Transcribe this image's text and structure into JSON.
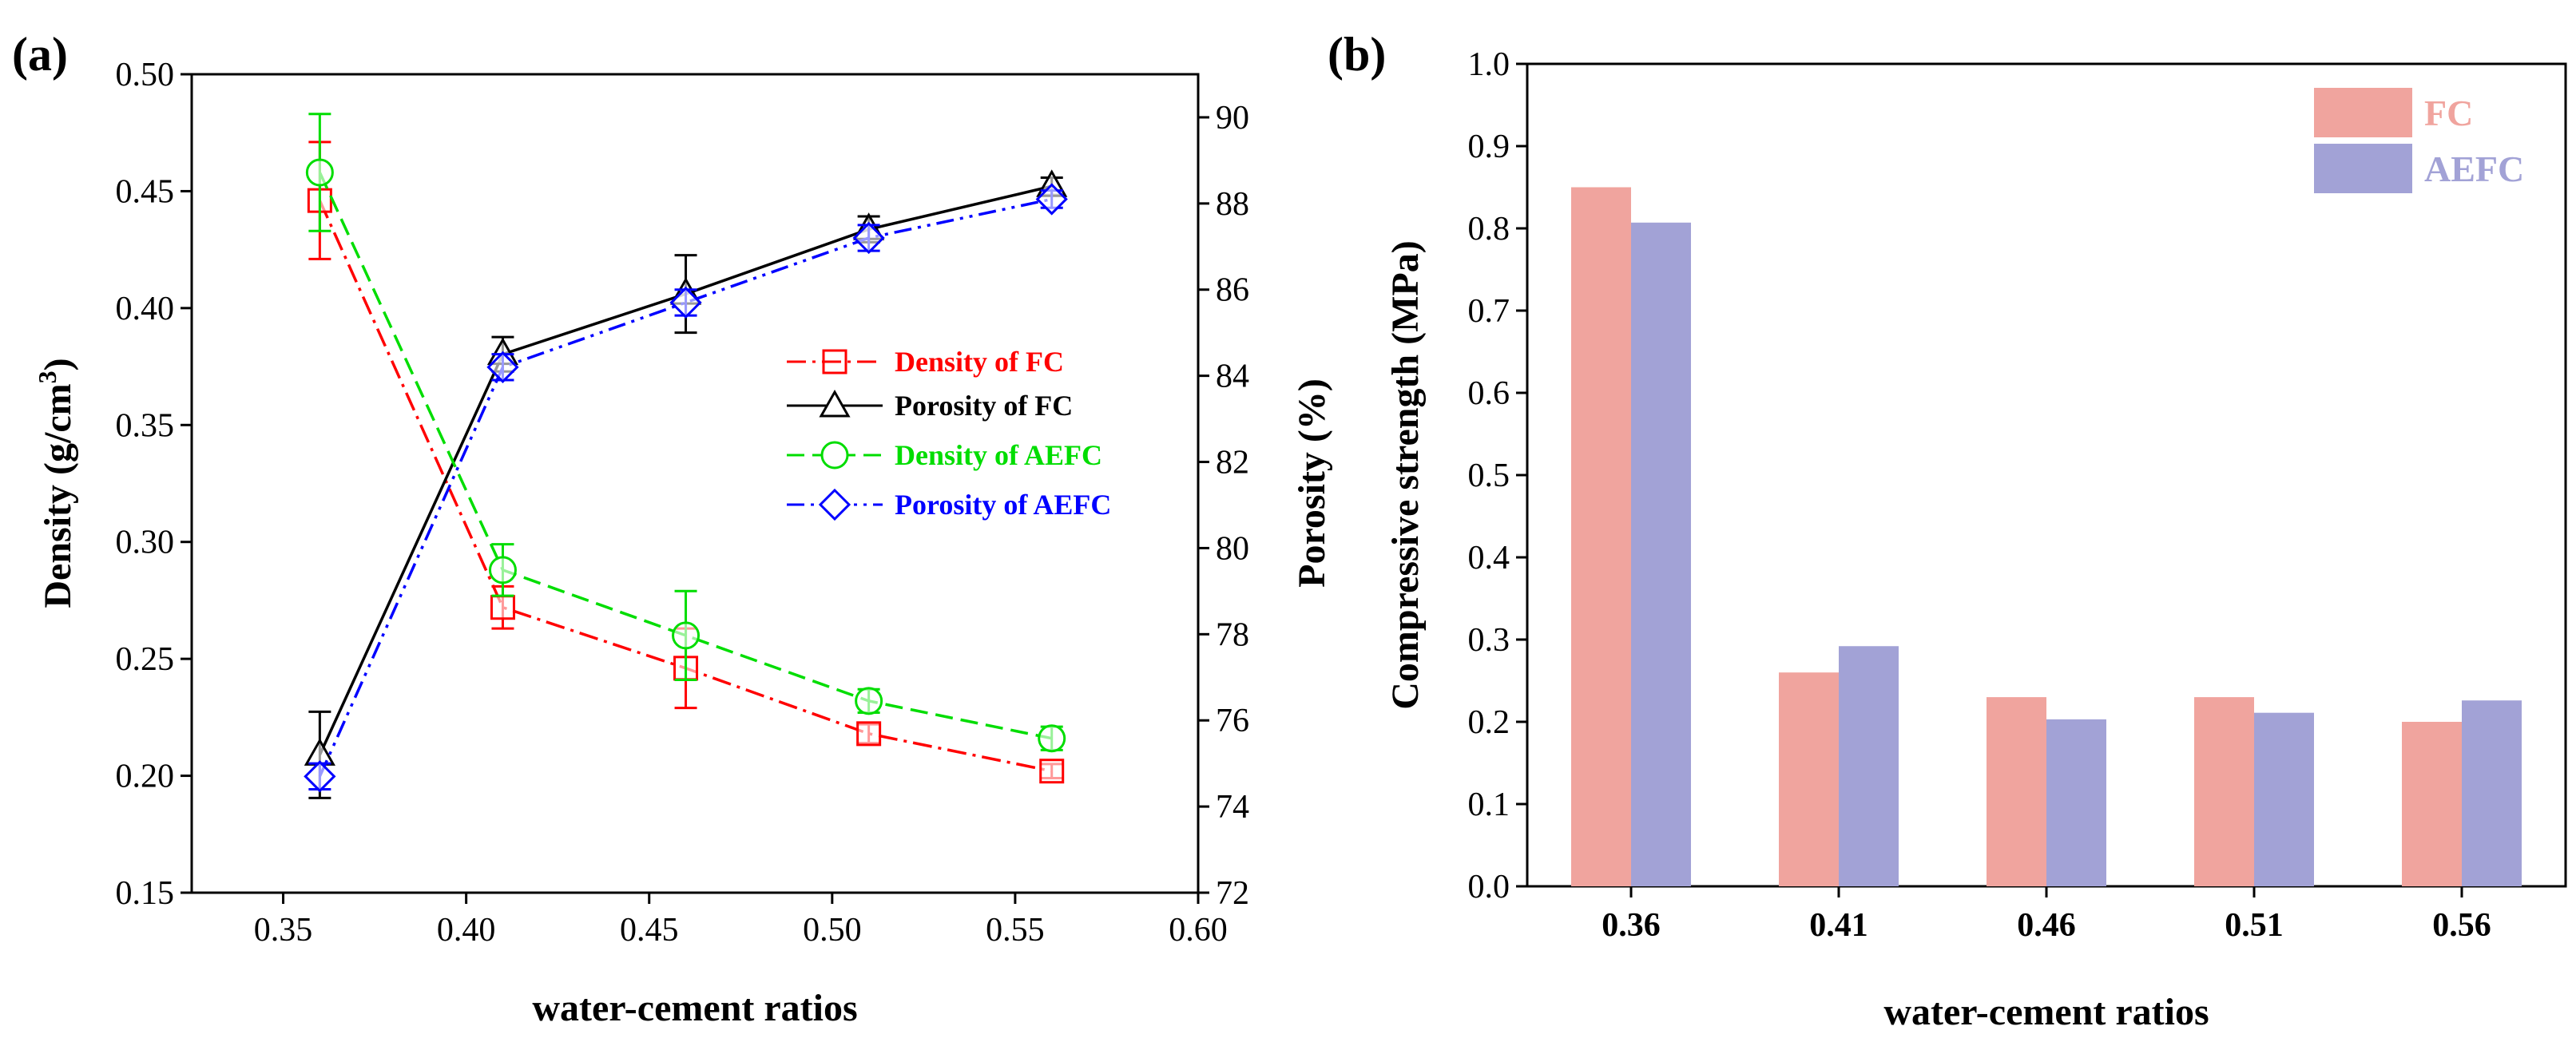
{
  "chart_data": [
    {
      "panel": "(a)",
      "type": "line",
      "xlabel": "water-cement ratios",
      "ylabel": "Density (g/cm",
      "ylabel_sup": "3",
      "ylabel_close": ")",
      "y2label": "Porosity (%)",
      "xlim": [
        0.325,
        0.6
      ],
      "ylim": [
        0.15,
        0.5
      ],
      "y2lim": [
        72,
        91
      ],
      "xticks": [
        "0.35",
        "0.40",
        "0.45",
        "0.50",
        "0.55",
        "0.60"
      ],
      "yticks": [
        "0.15",
        "0.20",
        "0.25",
        "0.30",
        "0.35",
        "0.40",
        "0.45",
        "0.50"
      ],
      "y2ticks": [
        "72",
        "74",
        "76",
        "78",
        "80",
        "82",
        "84",
        "86",
        "88",
        "90"
      ],
      "x": [
        0.36,
        0.41,
        0.46,
        0.51,
        0.56
      ],
      "series": [
        {
          "name": "Density of FC",
          "axis": "left",
          "color": "#ff0000",
          "marker": "square",
          "dash": "dashdot",
          "values": [
            0.446,
            0.272,
            0.246,
            0.218,
            0.202
          ],
          "errors": [
            0.025,
            0.009,
            0.017,
            0.004,
            0.003
          ]
        },
        {
          "name": "Porosity of FC",
          "axis": "right",
          "color": "#000000",
          "marker": "triangle",
          "dash": "solid",
          "values": [
            75.2,
            84.5,
            85.9,
            87.4,
            88.4
          ],
          "errors": [
            1.0,
            0.4,
            0.9,
            0.3,
            0.2
          ]
        },
        {
          "name": "Density of AEFC",
          "axis": "left",
          "color": "#00dd00",
          "marker": "circle",
          "dash": "dashed",
          "values": [
            0.458,
            0.288,
            0.26,
            0.232,
            0.216
          ],
          "errors": [
            0.025,
            0.011,
            0.019,
            0.005,
            0.005
          ]
        },
        {
          "name": "Porosity of AEFC",
          "axis": "right",
          "color": "#0000ff",
          "marker": "diamond",
          "dash": "dashdotdot",
          "values": [
            74.7,
            84.2,
            85.7,
            87.2,
            88.1
          ],
          "errors": [
            0.3,
            0.3,
            0.3,
            0.3,
            0.2
          ]
        }
      ]
    },
    {
      "panel": "(b)",
      "type": "bar",
      "xlabel": "water-cement ratios",
      "ylabel": "Compressive strength (MPa)",
      "categories": [
        "0.36",
        "0.41",
        "0.46",
        "0.51",
        "0.56"
      ],
      "ylim": [
        0,
        1.0
      ],
      "yticks": [
        "0.0",
        "0.1",
        "0.2",
        "0.3",
        "0.4",
        "0.5",
        "0.6",
        "0.7",
        "0.8",
        "0.9",
        "1.0"
      ],
      "series": [
        {
          "name": "FC",
          "color": "#f0a49e",
          "values": [
            0.85,
            0.26,
            0.23,
            0.23,
            0.2
          ]
        },
        {
          "name": "AEFC",
          "color": "#a2a2d6",
          "values": [
            0.807,
            0.292,
            0.203,
            0.211,
            0.226
          ]
        }
      ]
    }
  ]
}
